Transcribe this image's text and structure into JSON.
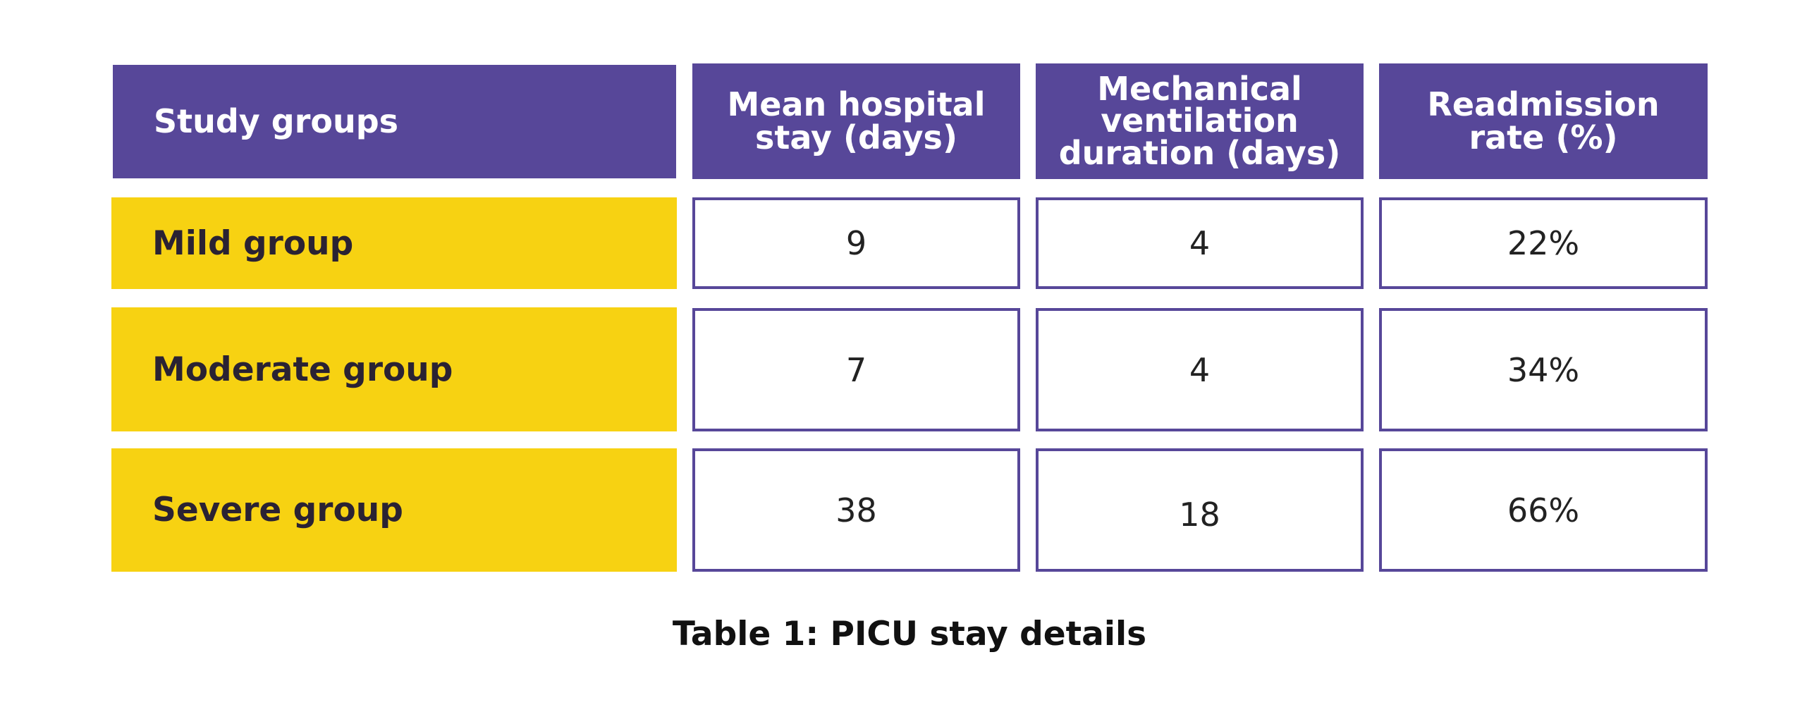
{
  "table": {
    "headers": [
      [
        "Study groups"
      ],
      [
        "Mean hospital",
        "stay (days)"
      ],
      [
        "Mechanical",
        "ventilation",
        "duration (days)"
      ],
      [
        "Readmission",
        "rate (%)"
      ]
    ],
    "rows": [
      {
        "group": "Mild group",
        "mean_stay": "9",
        "ventilation": "4",
        "readmission": "22%"
      },
      {
        "group": "Moderate group",
        "mean_stay": "7",
        "ventilation": "4",
        "readmission": "34%"
      },
      {
        "group": "Severe group",
        "mean_stay": "38",
        "ventilation": "18",
        "readmission": "66%"
      }
    ]
  },
  "caption": "Table 1: PICU stay details",
  "colors": {
    "header_bg": "#574799",
    "group_bg": "#f7d212",
    "cell_border": "#574799"
  }
}
